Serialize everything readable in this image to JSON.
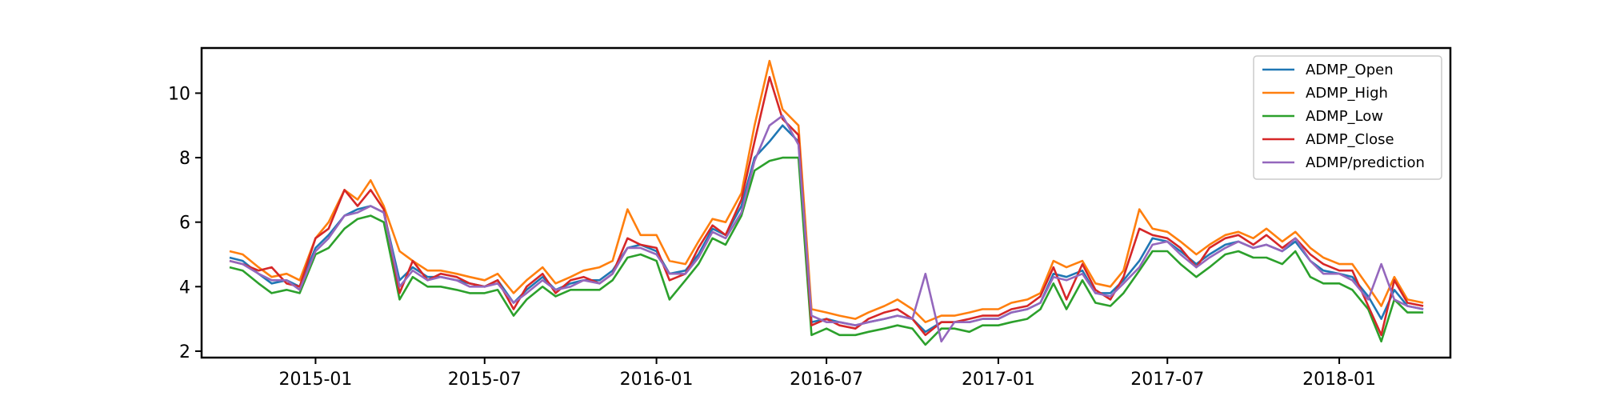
{
  "chart_data": {
    "type": "line",
    "title": "",
    "xlabel": "",
    "ylabel": "",
    "xlim": [
      "2014-09-01",
      "2018-04-30"
    ],
    "ylim": [
      1.8,
      11.4
    ],
    "x_ticks": [
      "2015-01",
      "2015-07",
      "2016-01",
      "2016-07",
      "2017-01",
      "2017-07",
      "2018-01"
    ],
    "y_ticks": [
      2,
      4,
      6,
      8,
      10
    ],
    "grid": false,
    "legend_position": "top-right",
    "dates": [
      "2014-10-01",
      "2014-10-15",
      "2014-11-01",
      "2014-11-15",
      "2014-12-01",
      "2014-12-15",
      "2015-01-01",
      "2015-01-15",
      "2015-02-01",
      "2015-02-15",
      "2015-03-01",
      "2015-03-15",
      "2015-04-01",
      "2015-04-15",
      "2015-05-01",
      "2015-05-15",
      "2015-06-01",
      "2015-06-15",
      "2015-07-01",
      "2015-07-15",
      "2015-08-01",
      "2015-08-15",
      "2015-09-01",
      "2015-09-15",
      "2015-10-01",
      "2015-10-15",
      "2015-11-01",
      "2015-11-15",
      "2015-12-01",
      "2015-12-15",
      "2016-01-01",
      "2016-01-15",
      "2016-02-01",
      "2016-02-15",
      "2016-03-01",
      "2016-03-15",
      "2016-04-01",
      "2016-04-15",
      "2016-05-01",
      "2016-05-15",
      "2016-06-01",
      "2016-06-15",
      "2016-07-01",
      "2016-07-15",
      "2016-08-01",
      "2016-08-15",
      "2016-09-01",
      "2016-09-15",
      "2016-10-01",
      "2016-10-15",
      "2016-11-01",
      "2016-11-15",
      "2016-12-01",
      "2016-12-15",
      "2017-01-01",
      "2017-01-15",
      "2017-02-01",
      "2017-02-15",
      "2017-03-01",
      "2017-03-15",
      "2017-04-01",
      "2017-04-15",
      "2017-05-01",
      "2017-05-15",
      "2017-06-01",
      "2017-06-15",
      "2017-07-01",
      "2017-07-15",
      "2017-08-01",
      "2017-08-15",
      "2017-09-01",
      "2017-09-15",
      "2017-10-01",
      "2017-10-15",
      "2017-11-01",
      "2017-11-15",
      "2017-12-01",
      "2017-12-15",
      "2018-01-01",
      "2018-01-15",
      "2018-02-01",
      "2018-02-15",
      "2018-03-01",
      "2018-03-15",
      "2018-04-01"
    ],
    "series": [
      {
        "name": "ADMP_Open",
        "color": "#1f77b4",
        "values": [
          4.9,
          4.8,
          4.4,
          4.1,
          4.2,
          4.0,
          5.2,
          5.6,
          6.2,
          6.4,
          6.5,
          6.3,
          4.2,
          4.6,
          4.3,
          4.3,
          4.2,
          4.1,
          4.0,
          4.2,
          3.5,
          3.9,
          4.3,
          3.9,
          4.1,
          4.2,
          4.2,
          4.5,
          5.2,
          5.3,
          5.1,
          4.4,
          4.5,
          5.0,
          5.8,
          5.6,
          6.5,
          8.0,
          8.5,
          9.0,
          8.5,
          2.9,
          3.0,
          2.9,
          2.8,
          2.9,
          3.0,
          3.1,
          3.0,
          2.6,
          2.9,
          2.9,
          2.9,
          3.0,
          3.0,
          3.2,
          3.3,
          3.5,
          4.4,
          4.3,
          4.5,
          3.8,
          3.8,
          4.2,
          4.8,
          5.5,
          5.4,
          5.1,
          4.7,
          5.0,
          5.3,
          5.4,
          5.2,
          5.3,
          5.1,
          5.4,
          4.8,
          4.5,
          4.4,
          4.3,
          3.7,
          3.0,
          3.9,
          3.4,
          3.3
        ]
      },
      {
        "name": "ADMP_High",
        "color": "#ff7f0e",
        "values": [
          5.1,
          5.0,
          4.6,
          4.3,
          4.4,
          4.2,
          5.5,
          6.0,
          7.0,
          6.7,
          7.3,
          6.5,
          5.1,
          4.8,
          4.5,
          4.5,
          4.4,
          4.3,
          4.2,
          4.4,
          3.8,
          4.2,
          4.6,
          4.1,
          4.3,
          4.5,
          4.6,
          4.8,
          6.4,
          5.6,
          5.6,
          4.8,
          4.7,
          5.4,
          6.1,
          6.0,
          6.9,
          9.0,
          11.0,
          9.5,
          9.0,
          3.3,
          3.2,
          3.1,
          3.0,
          3.2,
          3.4,
          3.6,
          3.3,
          2.9,
          3.1,
          3.1,
          3.2,
          3.3,
          3.3,
          3.5,
          3.6,
          3.8,
          4.8,
          4.6,
          4.8,
          4.1,
          4.0,
          4.5,
          6.4,
          5.8,
          5.7,
          5.4,
          5.0,
          5.3,
          5.6,
          5.7,
          5.5,
          5.8,
          5.4,
          5.7,
          5.2,
          4.9,
          4.7,
          4.7,
          4.0,
          3.4,
          4.3,
          3.6,
          3.5
        ]
      },
      {
        "name": "ADMP_Low",
        "color": "#2ca02c",
        "values": [
          4.6,
          4.5,
          4.1,
          3.8,
          3.9,
          3.8,
          5.0,
          5.2,
          5.8,
          6.1,
          6.2,
          6.0,
          3.6,
          4.3,
          4.0,
          4.0,
          3.9,
          3.8,
          3.8,
          3.9,
          3.1,
          3.6,
          4.0,
          3.7,
          3.9,
          3.9,
          3.9,
          4.2,
          4.9,
          5.0,
          4.8,
          3.6,
          4.2,
          4.7,
          5.5,
          5.3,
          6.2,
          7.6,
          7.9,
          8.0,
          8.0,
          2.5,
          2.7,
          2.5,
          2.5,
          2.6,
          2.7,
          2.8,
          2.7,
          2.2,
          2.7,
          2.7,
          2.6,
          2.8,
          2.8,
          2.9,
          3.0,
          3.3,
          4.1,
          3.3,
          4.2,
          3.5,
          3.4,
          3.8,
          4.5,
          5.1,
          5.1,
          4.7,
          4.3,
          4.6,
          5.0,
          5.1,
          4.9,
          4.9,
          4.7,
          5.1,
          4.3,
          4.1,
          4.1,
          3.9,
          3.3,
          2.3,
          3.6,
          3.2,
          3.2
        ]
      },
      {
        "name": "ADMP_Close",
        "color": "#d62728",
        "values": [
          4.8,
          4.7,
          4.5,
          4.6,
          4.1,
          4.0,
          5.5,
          5.8,
          7.0,
          6.5,
          7.0,
          6.4,
          3.8,
          4.8,
          4.2,
          4.4,
          4.3,
          4.1,
          4.0,
          4.2,
          3.3,
          4.0,
          4.4,
          3.8,
          4.2,
          4.3,
          4.1,
          4.4,
          5.5,
          5.3,
          5.2,
          4.2,
          4.4,
          5.2,
          5.9,
          5.6,
          6.7,
          8.5,
          10.5,
          9.2,
          8.7,
          2.8,
          3.0,
          2.8,
          2.7,
          3.0,
          3.2,
          3.3,
          3.0,
          2.5,
          2.9,
          2.9,
          3.0,
          3.1,
          3.1,
          3.3,
          3.4,
          3.7,
          4.6,
          3.6,
          4.7,
          3.9,
          3.6,
          4.3,
          5.8,
          5.6,
          5.5,
          5.2,
          4.6,
          5.2,
          5.5,
          5.6,
          5.3,
          5.6,
          5.2,
          5.5,
          5.0,
          4.7,
          4.5,
          4.5,
          3.4,
          2.5,
          4.2,
          3.5,
          3.4
        ]
      },
      {
        "name": "ADMP/prediction",
        "color": "#9467bd",
        "values": [
          4.8,
          4.7,
          4.4,
          4.2,
          4.2,
          3.9,
          5.1,
          5.5,
          6.2,
          6.3,
          6.5,
          6.3,
          4.0,
          4.5,
          4.2,
          4.3,
          4.2,
          4.0,
          4.0,
          4.1,
          3.5,
          3.8,
          4.2,
          3.9,
          4.0,
          4.2,
          4.1,
          4.4,
          5.2,
          5.2,
          5.0,
          4.4,
          4.4,
          4.9,
          5.7,
          5.5,
          6.3,
          7.9,
          9.0,
          9.3,
          8.4,
          3.1,
          2.9,
          2.9,
          2.8,
          2.9,
          3.0,
          3.1,
          3.0,
          4.4,
          2.3,
          2.9,
          2.9,
          3.0,
          3.0,
          3.2,
          3.3,
          3.5,
          4.3,
          4.2,
          4.4,
          3.8,
          3.7,
          4.1,
          4.6,
          5.3,
          5.4,
          5.0,
          4.6,
          4.9,
          5.2,
          5.4,
          5.2,
          5.3,
          5.1,
          5.5,
          4.8,
          4.4,
          4.4,
          4.2,
          3.6,
          4.7,
          3.6,
          3.4,
          3.3
        ]
      }
    ]
  }
}
